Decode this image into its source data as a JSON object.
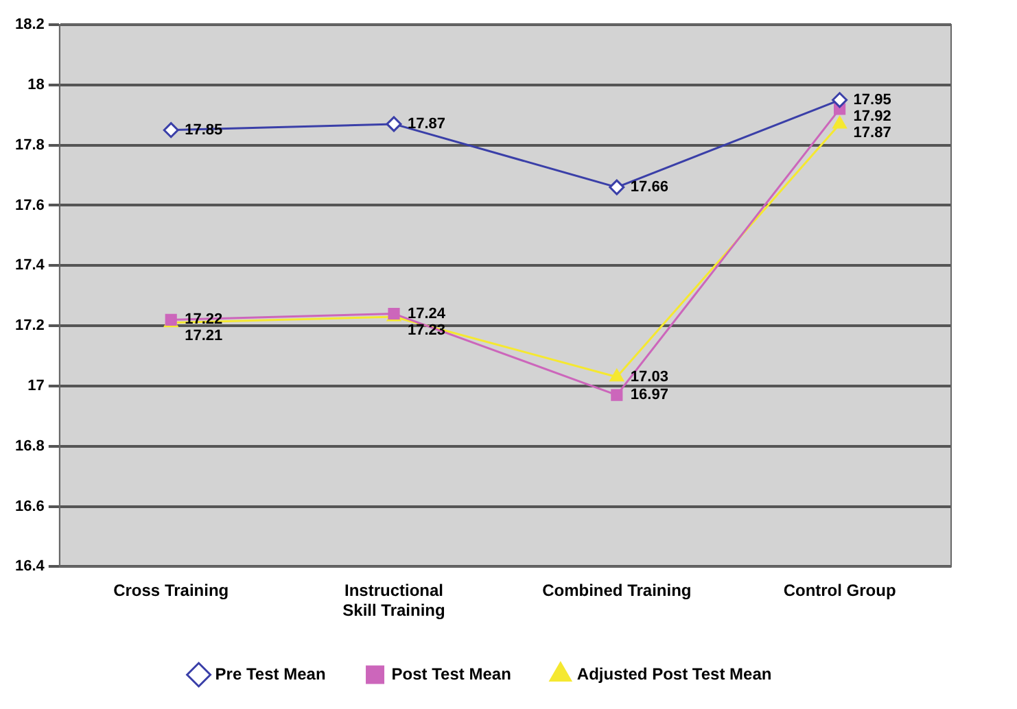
{
  "chart_data": {
    "type": "line",
    "categories": [
      "Cross Training",
      "Instructional Skill Training",
      "Combined Training",
      "Control Group"
    ],
    "series": [
      {
        "name": "Pre Test Mean",
        "color": "#3a3fa8",
        "marker": "diamond",
        "values": [
          17.85,
          17.87,
          17.66,
          17.95
        ]
      },
      {
        "name": "Post Test Mean",
        "color": "#cc66bb",
        "marker": "square",
        "values": [
          17.22,
          17.24,
          16.97,
          17.92
        ]
      },
      {
        "name": "Adjusted Post Test Mean",
        "color": "#f5e830",
        "marker": "triangle",
        "values": [
          17.21,
          17.23,
          17.03,
          17.87
        ]
      }
    ],
    "ylim": [
      16.4,
      18.2
    ],
    "yticks": [
      16.4,
      16.6,
      16.8,
      17,
      17.2,
      17.4,
      17.6,
      17.8,
      18,
      18.2
    ],
    "grid": "y",
    "legend": "bottom",
    "data_labels": true
  }
}
